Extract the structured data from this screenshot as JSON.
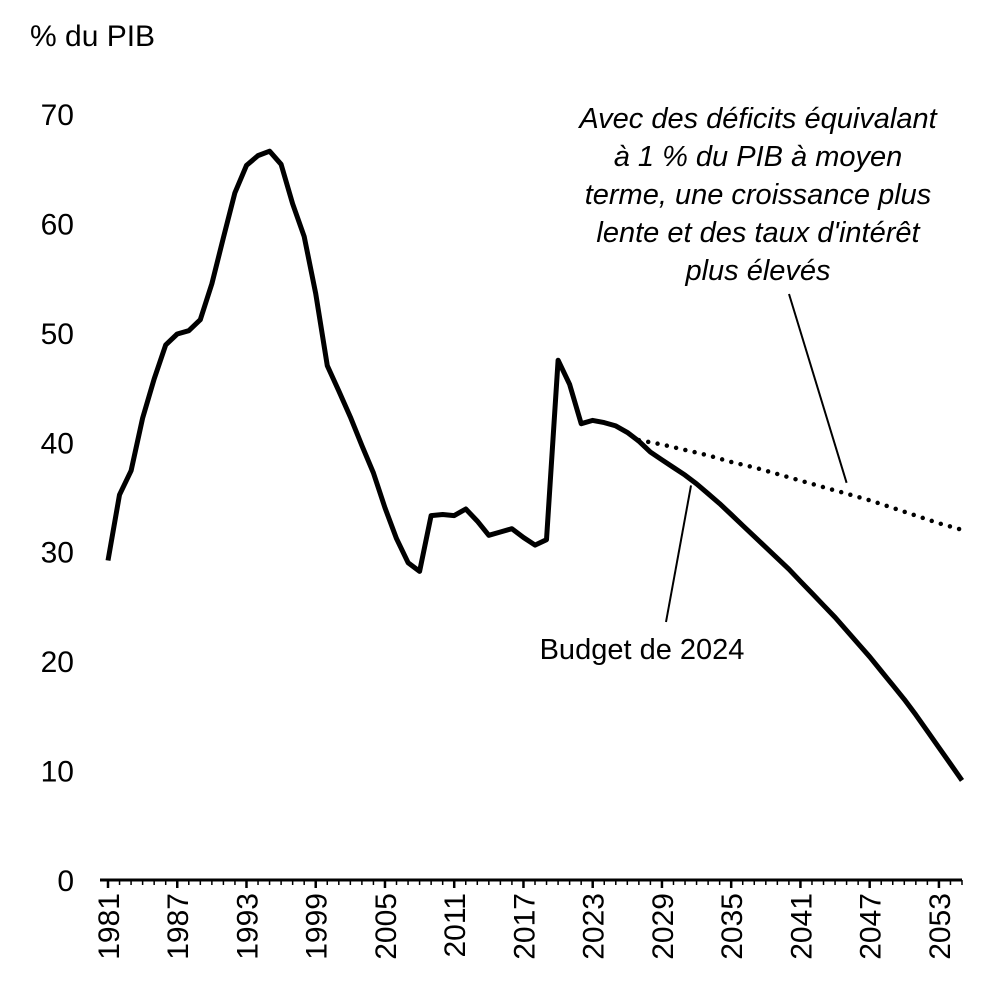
{
  "chart_data": {
    "type": "line",
    "title": "",
    "xlabel": "",
    "ylabel": "% du PIB",
    "ylim": [
      0,
      70
    ],
    "yticks": [
      0,
      10,
      20,
      30,
      40,
      50,
      60,
      70
    ],
    "xlim": [
      1981,
      2055
    ],
    "xticks": [
      "1981",
      "1987",
      "1993",
      "1999",
      "2005",
      "2011",
      "2017",
      "2023",
      "2029",
      "2035",
      "2041",
      "2047",
      "2053"
    ],
    "grid": false,
    "legend": "none",
    "series": [
      {
        "name": "Budget de 2024",
        "style": "solid",
        "color": "#000000",
        "points": [
          [
            1981,
            29.2
          ],
          [
            1982,
            35.2
          ],
          [
            1983,
            37.4
          ],
          [
            1984,
            42.2
          ],
          [
            1985,
            45.8
          ],
          [
            1986,
            48.9
          ],
          [
            1987,
            49.9
          ],
          [
            1988,
            50.2
          ],
          [
            1989,
            51.2
          ],
          [
            1990,
            54.5
          ],
          [
            1991,
            58.7
          ],
          [
            1992,
            62.8
          ],
          [
            1993,
            65.3
          ],
          [
            1994,
            66.2
          ],
          [
            1995,
            66.6
          ],
          [
            1996,
            65.4
          ],
          [
            1997,
            61.8
          ],
          [
            1998,
            58.8
          ],
          [
            1999,
            53.6
          ],
          [
            2000,
            47.0
          ],
          [
            2001,
            44.7
          ],
          [
            2002,
            42.3
          ],
          [
            2003,
            39.7
          ],
          [
            2004,
            37.2
          ],
          [
            2005,
            34.0
          ],
          [
            2006,
            31.2
          ],
          [
            2007,
            29.0
          ],
          [
            2008,
            28.2
          ],
          [
            2009,
            33.3
          ],
          [
            2010,
            33.4
          ],
          [
            2011,
            33.3
          ],
          [
            2012,
            33.9
          ],
          [
            2013,
            32.8
          ],
          [
            2014,
            31.5
          ],
          [
            2015,
            31.8
          ],
          [
            2016,
            32.1
          ],
          [
            2017,
            31.3
          ],
          [
            2018,
            30.6
          ],
          [
            2019,
            31.1
          ],
          [
            2020,
            47.5
          ],
          [
            2021,
            45.3
          ],
          [
            2022,
            41.7
          ],
          [
            2023,
            42.0
          ],
          [
            2024,
            41.8
          ],
          [
            2025,
            41.5
          ],
          [
            2026,
            40.9
          ],
          [
            2027,
            40.1
          ],
          [
            2028,
            39.1
          ],
          [
            2029,
            38.4
          ],
          [
            2030,
            37.7
          ],
          [
            2031,
            37.0
          ],
          [
            2032,
            36.2
          ],
          [
            2033,
            35.3
          ],
          [
            2034,
            34.4
          ],
          [
            2035,
            33.4
          ],
          [
            2036,
            32.4
          ],
          [
            2037,
            31.4
          ],
          [
            2038,
            30.4
          ],
          [
            2039,
            29.4
          ],
          [
            2040,
            28.4
          ],
          [
            2041,
            27.3
          ],
          [
            2042,
            26.2
          ],
          [
            2043,
            25.1
          ],
          [
            2044,
            24.0
          ],
          [
            2045,
            22.8
          ],
          [
            2046,
            21.6
          ],
          [
            2047,
            20.4
          ],
          [
            2048,
            19.1
          ],
          [
            2049,
            17.8
          ],
          [
            2050,
            16.5
          ],
          [
            2051,
            15.1
          ],
          [
            2052,
            13.6
          ],
          [
            2053,
            12.1
          ],
          [
            2054,
            10.6
          ],
          [
            2055,
            9.1
          ]
        ]
      },
      {
        "name": "Avec des déficits équivalant à 1 % du PIB à moyen terme, une croissance plus lente et des taux d'intérêt plus élevés",
        "style": "dotted",
        "color": "#000000",
        "points": [
          [
            2027,
            40.2
          ],
          [
            2029,
            39.8
          ],
          [
            2031,
            39.3
          ],
          [
            2033,
            38.8
          ],
          [
            2035,
            38.2
          ],
          [
            2037,
            37.7
          ],
          [
            2039,
            37.1
          ],
          [
            2041,
            36.5
          ],
          [
            2043,
            35.9
          ],
          [
            2045,
            35.3
          ],
          [
            2047,
            34.7
          ],
          [
            2049,
            34.0
          ],
          [
            2051,
            33.3
          ],
          [
            2053,
            32.6
          ],
          [
            2055,
            32.0
          ]
        ]
      }
    ],
    "annotations": [
      {
        "id": "scenario",
        "lines": [
          "Avec des déficits équivalant",
          "à 1 % du PIB à moyen",
          "terme, une croissance plus",
          "lente et des taux d'intérêt",
          "plus élevés"
        ],
        "italic": true,
        "points_to": [
          2045,
          36.3
        ]
      },
      {
        "id": "budget",
        "lines": [
          "Budget de 2024"
        ],
        "italic": false,
        "points_to": [
          2031,
          36.6
        ]
      }
    ]
  }
}
